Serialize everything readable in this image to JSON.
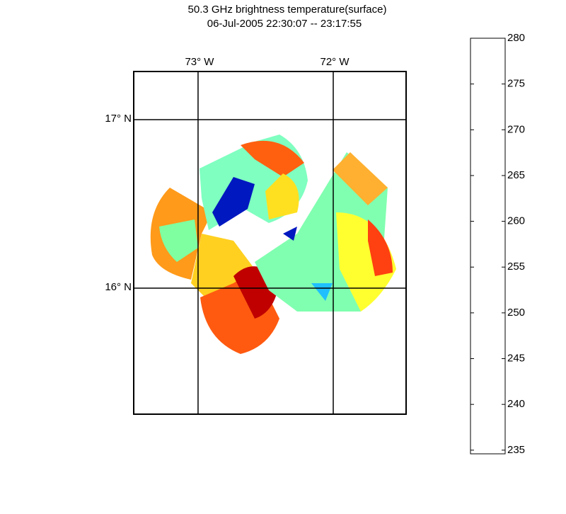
{
  "title": "50.3 GHz brightness temperature(surface)",
  "subtitle": "06-Jul-2005 22:30:07 -- 23:17:55",
  "map": {
    "xlim": [
      -73.476,
      -71.461
    ],
    "ylim": [
      15.252,
      17.286
    ],
    "xticks": [
      {
        "value": -73,
        "label": "73° W"
      },
      {
        "value": -72,
        "label": "72° W"
      }
    ],
    "yticks": [
      {
        "value": 17,
        "label": "17° N"
      },
      {
        "value": 16,
        "label": "16° N"
      }
    ],
    "grid": true
  },
  "colorbar": {
    "lim": [
      234.6,
      280
    ],
    "ticks": [
      235,
      240,
      245,
      250,
      255,
      260,
      265,
      270,
      275,
      280
    ]
  }
}
